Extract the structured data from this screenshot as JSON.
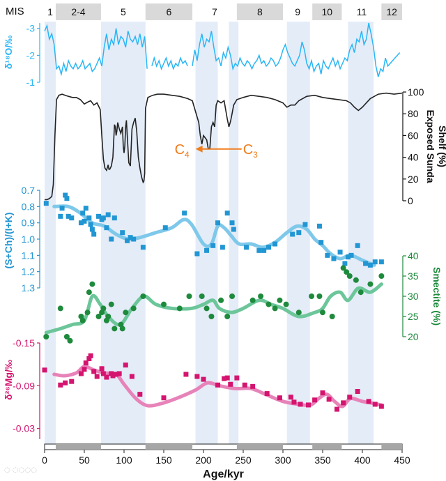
{
  "chart_data": {
    "type": "line",
    "stacked_panels": true,
    "mis": {
      "label": "MIS",
      "stages": [
        {
          "label": "1",
          "from": 0,
          "to": 14,
          "glacial": false
        },
        {
          "label": "2-4",
          "from": 14,
          "to": 71,
          "glacial": true
        },
        {
          "label": "5",
          "from": 71,
          "to": 127,
          "glacial": false
        },
        {
          "label": "6",
          "from": 127,
          "to": 186,
          "glacial": true
        },
        {
          "label": "7",
          "from": 186,
          "to": 242,
          "glacial": false
        },
        {
          "label": "8",
          "from": 242,
          "to": 300,
          "glacial": true
        },
        {
          "label": "9",
          "from": 300,
          "to": 337,
          "glacial": false
        },
        {
          "label": "10",
          "from": 337,
          "to": 374,
          "glacial": true
        },
        {
          "label": "11",
          "from": 374,
          "to": 424,
          "glacial": false
        },
        {
          "label": "12",
          "from": 424,
          "to": 450,
          "glacial": true
        }
      ]
    },
    "interglacial_bands": [
      [
        0,
        14
      ],
      [
        71,
        127
      ],
      [
        190,
        218
      ],
      [
        232,
        244
      ],
      [
        305,
        334
      ],
      [
        382,
        414
      ]
    ],
    "xaxis": {
      "label": "Age/kyr",
      "lim": [
        0,
        450
      ],
      "ticks": [
        0,
        50,
        100,
        150,
        200,
        250,
        300,
        350,
        400,
        450
      ]
    },
    "panels": [
      {
        "id": "d18O",
        "ylabel": "δ¹⁸O/‰",
        "color": "#29b6f6",
        "ylim": [
          -1,
          -3.2
        ],
        "ticks": [
          "-3",
          "-2",
          "-1"
        ],
        "series_x": [
          0,
          3,
          6,
          9,
          12,
          15,
          18,
          21,
          24,
          27,
          30,
          33,
          36,
          39,
          42,
          45,
          48,
          51,
          54,
          57,
          60,
          63,
          66,
          69,
          72,
          75,
          78,
          81,
          84,
          87,
          90,
          93,
          96,
          99,
          102,
          105,
          108,
          111,
          114,
          117,
          120,
          123,
          126,
          129,
          132,
          135,
          138,
          141,
          144,
          147,
          150,
          153,
          156,
          159,
          162,
          165,
          168,
          171,
          174,
          177,
          180,
          183,
          186,
          189,
          192,
          195,
          198,
          201,
          204,
          207,
          210,
          213,
          216,
          219,
          222,
          225,
          228,
          231,
          234,
          237,
          240,
          243,
          246,
          249,
          252,
          255,
          258,
          261,
          264,
          267,
          270,
          273,
          276,
          279,
          282,
          285,
          288,
          291,
          294,
          297,
          300,
          303,
          306,
          309,
          312,
          315,
          318,
          321,
          324,
          327,
          330,
          333,
          336,
          339,
          342,
          345,
          348,
          351,
          354,
          357,
          360,
          363,
          366,
          369,
          372,
          375,
          378,
          381,
          384,
          387,
          390,
          393,
          396,
          399,
          402,
          405,
          408,
          411,
          414,
          417,
          420,
          423,
          426,
          429,
          432,
          435,
          438,
          441,
          444,
          447
        ],
        "series_y": [
          -2.9,
          -3.1,
          -2.6,
          -2.8,
          -2.4,
          -1.5,
          -1.6,
          -1.3,
          -1.7,
          -1.4,
          -1.8,
          -1.6,
          -1.5,
          -1.7,
          -1.5,
          -1.6,
          -1.8,
          -1.5,
          -1.6,
          -1.7,
          -1.4,
          -1.5,
          -1.7,
          -1.9,
          -1.6,
          -2.3,
          -2.8,
          -2.2,
          -2.6,
          -2.4,
          -3.0,
          -2.4,
          -2.7,
          -2.6,
          -2.3,
          -2.9,
          -2.6,
          -2.5,
          -2.7,
          -2.4,
          -2.8,
          -2.3,
          -2.7,
          -1.5,
          null,
          -1.6,
          -1.9,
          -1.6,
          -1.8,
          -1.5,
          -1.7,
          -1.9,
          -1.6,
          -1.8,
          -1.5,
          -1.7,
          -1.6,
          -1.9,
          -1.7,
          -1.8,
          -1.6,
          null,
          -1.6,
          -2.2,
          -1.8,
          -2.4,
          -2.8,
          -2.3,
          -2.6,
          -2.5,
          -2.9,
          -2.3,
          -1.8,
          -1.9,
          -1.6,
          -2.1,
          -1.9,
          -2.3,
          -2.0,
          -1.5,
          -1.7,
          -1.6,
          -1.9,
          -1.7,
          -1.6,
          -1.8,
          -1.7,
          -1.5,
          -1.7,
          -1.8,
          -2.0,
          -1.7,
          -1.8,
          -1.6,
          -1.7,
          -1.9,
          -1.8,
          -1.6,
          -1.7,
          -1.9,
          -2.2,
          -2.4,
          -2.1,
          -1.9,
          -1.7,
          -1.6,
          -1.8,
          -2.0,
          -2.5,
          -2.2,
          -1.7,
          -1.5,
          -1.8,
          -1.4,
          -1.6,
          -1.7,
          -1.3,
          -1.8,
          -1.6,
          -1.5,
          -1.7,
          -1.9,
          -1.6,
          -1.8,
          -1.5,
          -1.7,
          -1.9,
          -1.8,
          -2.2,
          -2.4,
          -2.1,
          -2.6,
          -2.5,
          -2.9,
          -2.4,
          -2.6,
          -3.2,
          -2.8,
          -2.3,
          -1.6,
          -1.2,
          -1.5,
          -1.4,
          -1.9,
          -1.6,
          -1.7,
          -1.8,
          -1.9,
          -2.0,
          -2.1
        ]
      },
      {
        "id": "shelf",
        "ylabel": "Exposed Sunda Shelf (%)",
        "color": "#222222",
        "ylim": [
          0,
          100
        ],
        "ticks": [
          "0",
          "20",
          "40",
          "60",
          "80",
          "100"
        ],
        "annotation": {
          "left": "C",
          "left_sub": "4",
          "right": "C",
          "right_sub": "3",
          "arrow_from": 248,
          "arrow_to": 190,
          "y": 45,
          "color": "#f07c1a"
        },
        "series_x": [
          0,
          3,
          6,
          9,
          11,
          13,
          15,
          18,
          22,
          26,
          30,
          35,
          40,
          45,
          50,
          55,
          58,
          62,
          66,
          70,
          72,
          74,
          76,
          78,
          80,
          81,
          82,
          84,
          86,
          88,
          89,
          90,
          91,
          92,
          94,
          96,
          98,
          99,
          100,
          101,
          102,
          103,
          104,
          106,
          108,
          110,
          112,
          114,
          116,
          118,
          120,
          122,
          124,
          125,
          126,
          127,
          130,
          136,
          142,
          150,
          160,
          170,
          180,
          186,
          190,
          194,
          196,
          198,
          200,
          202,
          204,
          206,
          208,
          210,
          212,
          214,
          216,
          218,
          222,
          226,
          230,
          232,
          234,
          236,
          238,
          242,
          250,
          260,
          270,
          280,
          290,
          300,
          305,
          310,
          315,
          320,
          330,
          340,
          350,
          360,
          370,
          380,
          385,
          390,
          395,
          400,
          405,
          410,
          420,
          430,
          440,
          450
        ],
        "series_y": [
          1,
          1,
          2,
          4,
          15,
          60,
          93,
          97,
          98,
          97,
          96,
          95,
          95,
          93,
          89,
          91,
          92,
          88,
          90,
          84,
          60,
          38,
          30,
          28,
          33,
          29,
          29,
          32,
          40,
          70,
          68,
          60,
          64,
          72,
          66,
          62,
          68,
          50,
          44,
          50,
          68,
          74,
          60,
          35,
          32,
          66,
          72,
          76,
          64,
          40,
          30,
          22,
          17,
          18,
          25,
          85,
          95,
          97,
          98,
          98,
          97,
          96,
          94,
          92,
          82,
          72,
          60,
          52,
          60,
          58,
          56,
          48,
          48,
          68,
          72,
          68,
          88,
          92,
          90,
          92,
          75,
          68,
          73,
          80,
          88,
          93,
          95,
          97,
          96,
          95,
          93,
          90,
          86,
          88,
          88,
          92,
          96,
          97,
          95,
          94,
          93,
          92,
          90,
          86,
          83,
          86,
          90,
          94,
          98,
          99,
          98,
          99
        ]
      },
      {
        "id": "ratio",
        "ylabel": "(S+Ch)/(I+K)",
        "color": "#2196d3",
        "fit_color": "#7ec8ea",
        "ylim": [
          0.7,
          1.3
        ],
        "ticks": [
          "0.7",
          "0.8",
          "0.9",
          "1.0",
          "1.1",
          "1.2",
          "1.3"
        ],
        "points_x": [
          2,
          20,
          22,
          26,
          28,
          30,
          34,
          46,
          48,
          50,
          52,
          56,
          58,
          60,
          62,
          68,
          72,
          74,
          78,
          80,
          84,
          88,
          98,
          104,
          108,
          112,
          124,
          152,
          176,
          192,
          204,
          212,
          218,
          224,
          230,
          236,
          238,
          254,
          270,
          276,
          282,
          290,
          312,
          320,
          328,
          346,
          348,
          356,
          364,
          372,
          378,
          382,
          386,
          394,
          404,
          410,
          416,
          424
        ],
        "points_y": [
          0.78,
          0.86,
          0.81,
          0.73,
          0.75,
          0.86,
          0.87,
          0.9,
          0.84,
          0.89,
          0.81,
          0.87,
          0.91,
          0.94,
          0.97,
          0.86,
          0.88,
          0.87,
          0.93,
          0.85,
          1.0,
          0.87,
          0.96,
          1.01,
          0.99,
          1.0,
          1.05,
          0.93,
          0.84,
          1.09,
          1.07,
          1.04,
          0.9,
          1.05,
          0.84,
          0.9,
          0.94,
          1.05,
          1.07,
          1.07,
          1.05,
          1.03,
          0.97,
          0.96,
          0.91,
          0.92,
          1.02,
          1.1,
          1.12,
          1.08,
          1.15,
          1.11,
          1.1,
          1.04,
          1.15,
          1.16,
          1.14,
          1.14
        ],
        "fit_x": [
          12,
          30,
          45,
          60,
          75,
          90,
          105,
          120,
          140,
          160,
          175,
          185,
          200,
          210,
          218,
          226,
          235,
          245,
          260,
          275,
          290,
          305,
          318,
          330,
          340,
          350,
          360,
          372,
          385,
          400,
          415
        ],
        "fit_y": [
          0.8,
          0.8,
          0.84,
          0.9,
          0.92,
          0.97,
          1.0,
          0.99,
          0.96,
          0.93,
          0.88,
          0.91,
          1.03,
          1.03,
          0.92,
          0.93,
          0.98,
          1.03,
          1.03,
          1.05,
          1.02,
          0.96,
          0.92,
          0.94,
          1.0,
          1.04,
          1.09,
          1.12,
          1.1,
          1.13,
          1.16
        ]
      },
      {
        "id": "smectite",
        "ylabel": "Smectite (%)",
        "color": "#1e8a3c",
        "fit_color": "#6cc69a",
        "ylim": [
          20,
          40
        ],
        "ticks": [
          "20",
          "25",
          "30",
          "35",
          "40"
        ],
        "points_x": [
          2,
          20,
          28,
          32,
          46,
          48,
          54,
          56,
          60,
          68,
          72,
          74,
          78,
          80,
          84,
          88,
          96,
          98,
          102,
          112,
          124,
          150,
          170,
          182,
          198,
          204,
          210,
          222,
          230,
          236,
          262,
          272,
          282,
          290,
          296,
          304,
          320,
          336,
          346,
          350,
          362,
          376,
          380,
          384,
          392,
          398,
          410,
          424
        ],
        "points_y": [
          20,
          27,
          20,
          19,
          25,
          24,
          26,
          31,
          33,
          25,
          26,
          27,
          24,
          25,
          28,
          22,
          23,
          22,
          26,
          27,
          30,
          28,
          27,
          30,
          30,
          27,
          25,
          29,
          25,
          30,
          29,
          30,
          28,
          27,
          29,
          28,
          26,
          30,
          30,
          26,
          25,
          37,
          36,
          35,
          34,
          31,
          33,
          35
        ],
        "fit_x": [
          2,
          20,
          35,
          50,
          60,
          70,
          80,
          95,
          110,
          125,
          140,
          160,
          185,
          200,
          212,
          220,
          235,
          250,
          270,
          285,
          300,
          320,
          340,
          350,
          360,
          372,
          382,
          395,
          410,
          424
        ],
        "fit_y": [
          21,
          22,
          23,
          24,
          30,
          28,
          25,
          23,
          27,
          30,
          28,
          27,
          27,
          28,
          29,
          27,
          26,
          27,
          29,
          28,
          27,
          25,
          26,
          27,
          30,
          31,
          29,
          32,
          31,
          33
        ]
      },
      {
        "id": "d26Mg",
        "ylabel": "δ²⁶Mg/‰",
        "color": "#d4146f",
        "fit_color": "#e783b9",
        "ylim": [
          -0.15,
          -0.015
        ],
        "ticks": [
          "-0.03",
          "-0.09",
          "-0.15"
        ],
        "points_x": [
          0,
          20,
          26,
          34,
          46,
          50,
          52,
          56,
          58,
          62,
          66,
          72,
          74,
          78,
          84,
          86,
          90,
          94,
          102,
          110,
          120,
          150,
          178,
          192,
          200,
          218,
          226,
          230,
          234,
          242,
          252,
          262,
          280,
          296,
          310,
          314,
          322,
          332,
          340,
          350,
          358,
          368,
          376,
          384,
          394,
          408,
          416,
          424
        ],
        "points_y": [
          -0.112,
          -0.091,
          -0.094,
          -0.096,
          -0.107,
          -0.113,
          -0.122,
          -0.128,
          -0.132,
          -0.11,
          -0.103,
          -0.114,
          -0.107,
          -0.102,
          -0.107,
          -0.104,
          -0.106,
          -0.107,
          -0.119,
          -0.103,
          -0.078,
          -0.073,
          -0.106,
          -0.103,
          -0.099,
          -0.091,
          -0.1,
          -0.101,
          -0.092,
          -0.101,
          -0.091,
          -0.089,
          -0.079,
          -0.073,
          -0.074,
          -0.067,
          -0.064,
          -0.063,
          -0.07,
          -0.08,
          -0.071,
          -0.057,
          -0.066,
          -0.074,
          -0.082,
          -0.068,
          -0.064,
          -0.061
        ],
        "fit_x": [
          12,
          25,
          40,
          50,
          62,
          75,
          90,
          100,
          115,
          130,
          150,
          170,
          190,
          205,
          220,
          240,
          260,
          280,
          300,
          320,
          335,
          345,
          355,
          365,
          375,
          385,
          400,
          415,
          424
        ],
        "fit_y": [
          -0.106,
          -0.104,
          -0.108,
          -0.117,
          -0.112,
          -0.108,
          -0.106,
          -0.092,
          -0.072,
          -0.062,
          -0.066,
          -0.074,
          -0.084,
          -0.094,
          -0.09,
          -0.086,
          -0.086,
          -0.077,
          -0.068,
          -0.064,
          -0.063,
          -0.072,
          -0.078,
          -0.068,
          -0.061,
          -0.072,
          -0.068,
          -0.065,
          -0.063
        ]
      }
    ]
  }
}
